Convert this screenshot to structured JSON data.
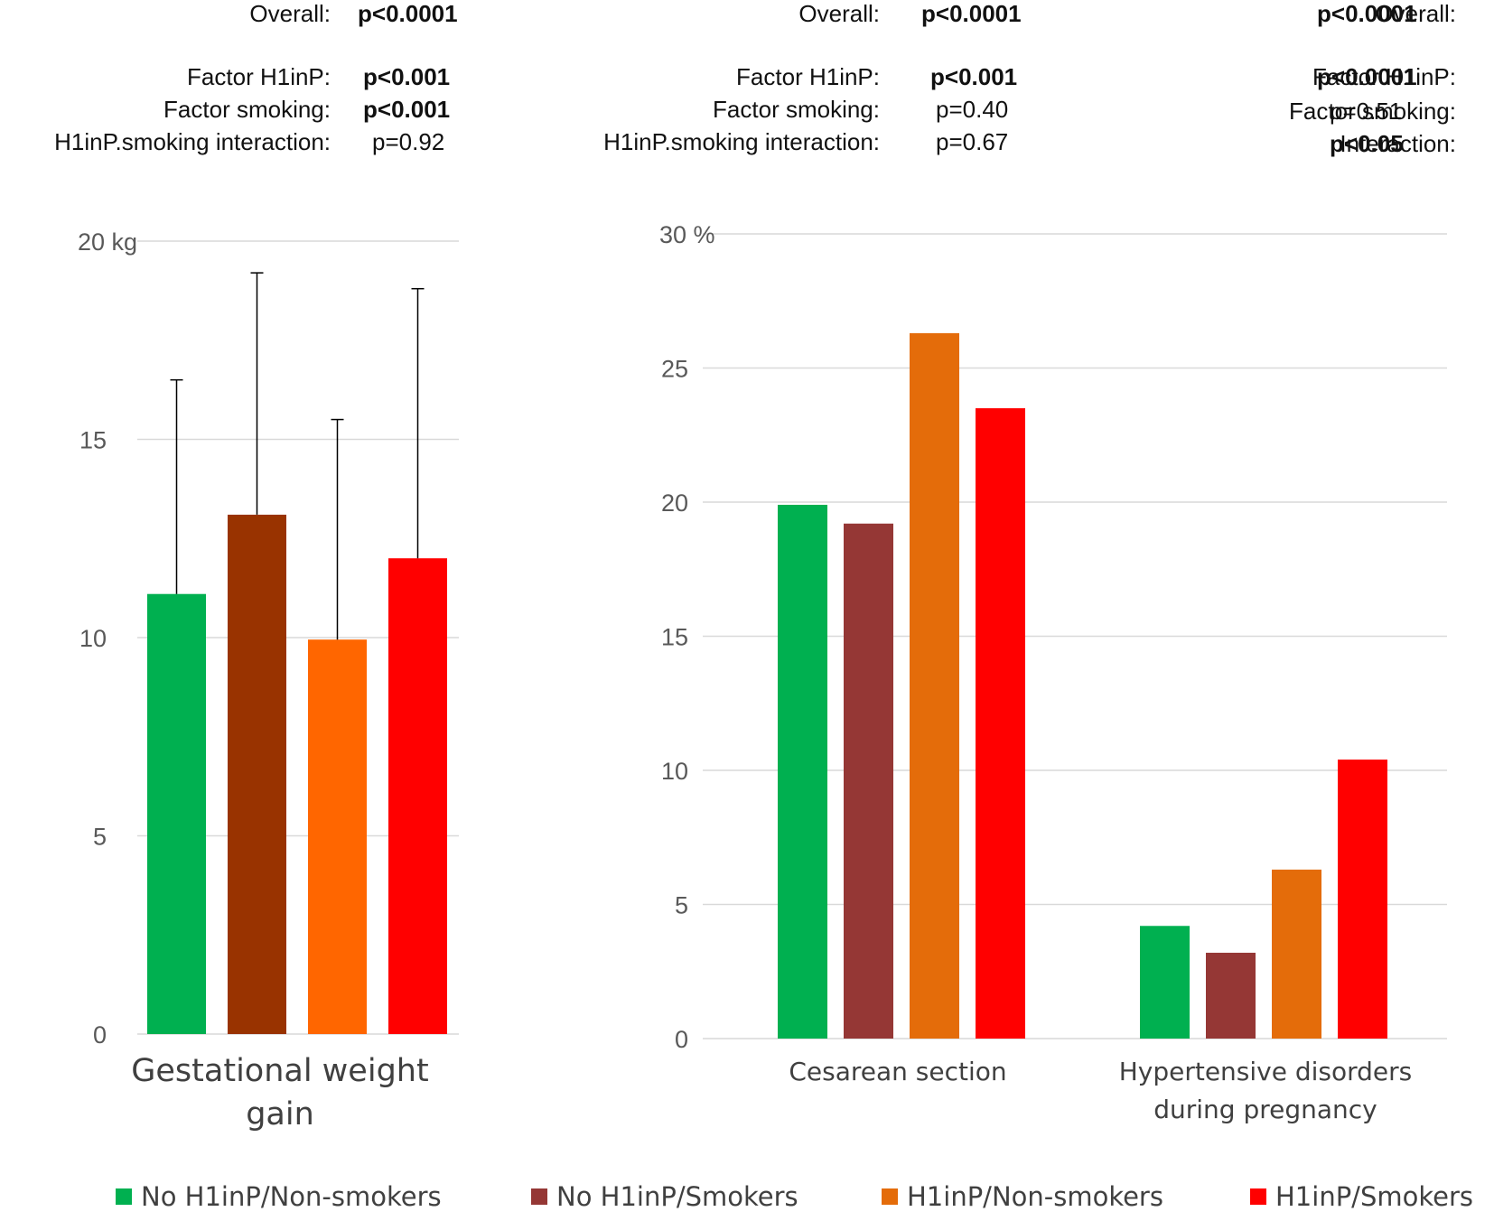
{
  "stats_panels": [
    {
      "overall_label": "Overall:",
      "overall_value": "p<0.0001",
      "h1inp_label": "Factor H1inP:",
      "h1inp_value": "p<0.001",
      "smoking_label": "Factor smoking:",
      "smoking_value": "p<0.001",
      "interaction_label": "H1inP.smoking interaction:",
      "interaction_value": "p=0.92"
    },
    {
      "overall_label": "Overall:",
      "overall_value": "p<0.0001",
      "h1inp_label": "Factor H1inP:",
      "h1inp_value": "p<0.001",
      "smoking_label": "Factor smoking:",
      "smoking_value": "p=0.40",
      "interaction_label": "H1inP.smoking interaction:",
      "interaction_value": "p=0.67"
    },
    {
      "overall_label": "Overall:",
      "overall_value": "p<0.0001",
      "h1inp_label": "Factor H1inP:",
      "h1inp_value": "p<0.0001",
      "smoking_label": "Factor smoking:",
      "smoking_value": "p=0.51",
      "interaction_label": "Interaction:",
      "interaction_value": "p<0.05"
    }
  ],
  "colors": {
    "no_h1inp_nonsmokers": "#00b050",
    "no_h1inp_smokers_left": "#993300",
    "h1inp_nonsmokers_left": "#ff6600",
    "no_h1inp_smokers_right": "#953735",
    "h1inp_nonsmokers_right": "#e46c0a",
    "h1inp_smokers": "#ff0000",
    "grid": "#d9d9d9",
    "error_bar": "#000000"
  },
  "legend": [
    {
      "label": "No H1inP/Non-smokers",
      "color": "#00b050"
    },
    {
      "label": "No H1inP/Smokers",
      "color": "#953735"
    },
    {
      "label": "H1inP/Non-smokers",
      "color": "#e46c0a"
    },
    {
      "label": "H1inP/Smokers",
      "color": "#ff0000"
    }
  ],
  "chart_data": [
    {
      "type": "bar",
      "title": "",
      "categories": [
        "Gestational weight gain"
      ],
      "category_lines": [
        [
          "Gestational weight",
          "gain"
        ]
      ],
      "series": [
        {
          "name": "No H1inP/Non-smokers",
          "values": [
            11.1
          ],
          "error_upper": [
            16.5
          ]
        },
        {
          "name": "No H1inP/Smokers",
          "values": [
            13.1
          ],
          "error_upper": [
            19.2
          ]
        },
        {
          "name": "H1inP/Non-smokers",
          "values": [
            9.95
          ],
          "error_upper": [
            15.5
          ]
        },
        {
          "name": "H1inP/Smokers",
          "values": [
            12.0
          ],
          "error_upper": [
            18.8
          ]
        }
      ],
      "ylabel": "kg",
      "ylim": [
        0,
        20
      ],
      "yticks": [
        0,
        5,
        10,
        15,
        20
      ],
      "ytick_labels": [
        "0",
        "5",
        "10",
        "15",
        "20 kg"
      ],
      "grid": true
    },
    {
      "type": "bar",
      "title": "",
      "categories": [
        "Cesarean section",
        "Hypertensive disorders during pregnancy"
      ],
      "category_lines": [
        [
          "Cesarean section"
        ],
        [
          "Hypertensive disorders",
          "during pregnancy"
        ]
      ],
      "series": [
        {
          "name": "No H1inP/Non-smokers",
          "values": [
            19.9,
            4.2
          ]
        },
        {
          "name": "No H1inP/Smokers",
          "values": [
            19.2,
            3.2
          ]
        },
        {
          "name": "H1inP/Non-smokers",
          "values": [
            26.3,
            6.3
          ]
        },
        {
          "name": "H1inP/Smokers",
          "values": [
            23.5,
            10.4
          ]
        }
      ],
      "ylabel": "%",
      "ylim": [
        0,
        30
      ],
      "yticks": [
        0,
        5,
        10,
        15,
        20,
        25,
        30
      ],
      "ytick_labels": [
        "0",
        "5",
        "10",
        "15",
        "20",
        "25",
        "30 %"
      ],
      "grid": true
    }
  ]
}
